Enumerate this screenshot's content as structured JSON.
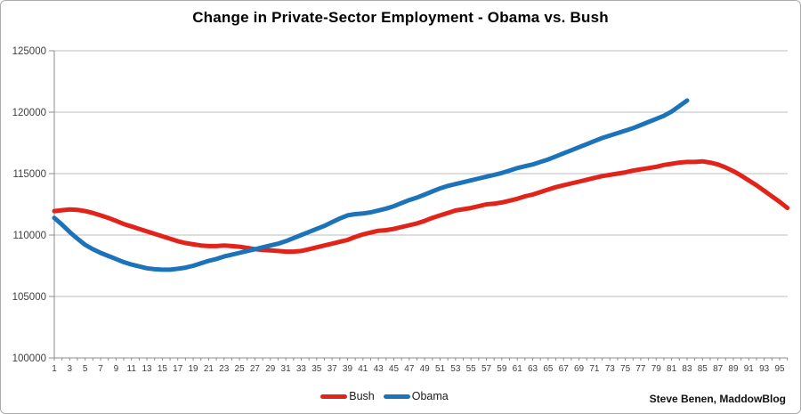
{
  "attribution": "Steve Benen, MaddowBlog",
  "chart_data": {
    "type": "line",
    "title": "Change in Private-Sector Employment - Obama vs. Bush",
    "xlabel": "",
    "ylabel": "",
    "x_unit": "month of presidency",
    "xlim": [
      1,
      96
    ],
    "ylim": [
      100000,
      125000
    ],
    "grid": "horizontal",
    "legend_position": "bottom-center",
    "y_ticks": [
      100000,
      105000,
      110000,
      115000,
      120000,
      125000
    ],
    "x_ticks": [
      1,
      3,
      5,
      7,
      9,
      11,
      13,
      15,
      17,
      19,
      21,
      23,
      25,
      27,
      29,
      31,
      33,
      35,
      37,
      39,
      41,
      43,
      45,
      47,
      49,
      51,
      53,
      55,
      57,
      59,
      61,
      63,
      65,
      67,
      69,
      71,
      73,
      75,
      77,
      79,
      81,
      83,
      85,
      87,
      89,
      91,
      93,
      95
    ],
    "series": [
      {
        "name": "Bush",
        "color": "#e2231a",
        "x_start": 1,
        "values": [
          111950,
          112020,
          112080,
          112050,
          111950,
          111800,
          111600,
          111400,
          111150,
          110900,
          110700,
          110500,
          110300,
          110100,
          109900,
          109700,
          109500,
          109350,
          109250,
          109150,
          109100,
          109100,
          109150,
          109100,
          109050,
          108950,
          108850,
          108800,
          108750,
          108700,
          108650,
          108650,
          108700,
          108850,
          109000,
          109150,
          109300,
          109450,
          109600,
          109850,
          110050,
          110200,
          110350,
          110400,
          110500,
          110650,
          110800,
          110950,
          111150,
          111400,
          111600,
          111800,
          112000,
          112100,
          112200,
          112350,
          112500,
          112550,
          112650,
          112800,
          112950,
          113150,
          113300,
          113500,
          113700,
          113900,
          114050,
          114200,
          114350,
          114500,
          114650,
          114800,
          114900,
          115000,
          115100,
          115250,
          115350,
          115450,
          115550,
          115700,
          115800,
          115900,
          115950,
          115950,
          116000,
          115900,
          115750,
          115500,
          115200,
          114850,
          114450,
          114050,
          113600,
          113150,
          112700,
          112200
        ]
      },
      {
        "name": "Obama",
        "color": "#1d73ba",
        "x_start": 1,
        "values": [
          111400,
          110850,
          110250,
          109700,
          109200,
          108850,
          108550,
          108300,
          108050,
          107800,
          107600,
          107450,
          107300,
          107220,
          107180,
          107180,
          107250,
          107350,
          107500,
          107700,
          107900,
          108050,
          108250,
          108400,
          108550,
          108700,
          108850,
          109000,
          109150,
          109300,
          109500,
          109750,
          110000,
          110250,
          110500,
          110750,
          111050,
          111350,
          111600,
          111700,
          111750,
          111850,
          112000,
          112150,
          112350,
          112600,
          112850,
          113050,
          113300,
          113550,
          113800,
          114000,
          114150,
          114300,
          114450,
          114600,
          114750,
          114900,
          115050,
          115250,
          115450,
          115600,
          115750,
          115950,
          116150,
          116400,
          116650,
          116900,
          117150,
          117400,
          117650,
          117900,
          118100,
          118300,
          118500,
          118700,
          118950,
          119200,
          119450,
          119700,
          120050,
          120500,
          120950
        ]
      }
    ]
  }
}
